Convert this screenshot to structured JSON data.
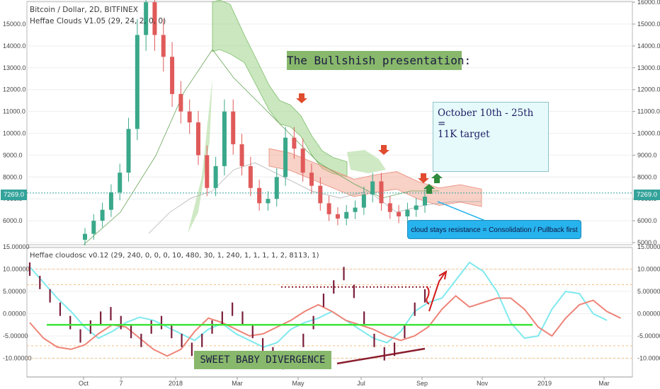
{
  "header": {
    "symbol_line": "Bitcoin / Dollar, 2D, BITFINEX",
    "indicator_line": "Heffae Clouds V1.05 (29, 24, 2, 0, 0)",
    "osc_line": "Heffae cloudosc v0.12 (29, 240, 0, 0, 0, 10, 480, 30, 1, 240, 1, 1, 1, 1, 2, 8113, 1)"
  },
  "annotations": {
    "bullish_title": "The Bullshish presentation:",
    "target_line1": "October 10th - 25th =",
    "target_line2": "11K target",
    "cloud_callout": "cloud stays resistance = Consolidation / Pullback first",
    "divergence_label": "SWEET BABY DIVERGENCE"
  },
  "price_tags": {
    "left": "7269.0",
    "right": "7269.0"
  },
  "colors": {
    "bull_candle": "#3aa88a",
    "bear_candle": "#e05a5a",
    "osc_bar": "#7a1e3a",
    "cloud_green": "#9fd38a",
    "cloud_red": "#f2a38f",
    "osc_cyan": "#7fe9ee",
    "osc_red": "#ee8478",
    "zero_line": "#3ee43a",
    "div_line": "#8a1d2e",
    "price_line": "#33a39b"
  },
  "chart_data": [
    {
      "type": "candlestick",
      "title": "Bitcoin / Dollar, 2D, BITFINEX",
      "ylabel": "",
      "y_ticks": [
        "5000.0",
        "6000.0",
        "7000.0",
        "8000.0",
        "9000.0",
        "10000.0",
        "11000.0",
        "12000.0",
        "13000.0",
        "14000.0",
        "15000.0",
        "16000.0"
      ],
      "ylim": [
        5000,
        16000
      ],
      "x_ticks": [
        "Oct",
        "7",
        "2018",
        "Mar",
        "May",
        "Jul",
        "Sep",
        "Nov",
        "2019",
        "Mar"
      ],
      "last_price": 7269.0,
      "close_series_approx": [
        5400,
        6000,
        6500,
        7300,
        8200,
        10200,
        14500,
        16000,
        14500,
        13500,
        11800,
        11000,
        10500,
        9000,
        7500,
        8500,
        11000,
        9500,
        8500,
        7500,
        6800,
        7000,
        8000,
        9800,
        9300,
        8200,
        7600,
        6800,
        6300,
        6100,
        6400,
        6600,
        7200,
        7800,
        6800,
        6400,
        6200,
        6500,
        6700,
        7100
      ],
      "cloud_green_approx": [
        16000,
        16100,
        15900,
        14500,
        13200,
        12200,
        11500,
        11300,
        10800,
        9900,
        9200,
        8900,
        8700
      ],
      "cloud_red_approx": [
        9800,
        9600,
        9200,
        8600,
        7900,
        7900,
        8000,
        7300,
        7100,
        7300
      ]
    },
    {
      "type": "line",
      "title": "Heffae cloudosc v0.12 (29, 240, 0, 0, 0, 10, 480, 30, 1, 240, 1, 1, 1, 1, 2, 8113, 1)",
      "y_ticks": [
        "15.00000",
        "10.00000",
        "5.00000",
        "0.00000",
        "-5.00000",
        "-10.00000"
      ],
      "ylim": [
        -14,
        15.5
      ],
      "horizontal_level": -2.5,
      "dotted_resistance": 6,
      "series": [
        {
          "values": [
            10.5,
            7,
            3.5,
            0.5,
            -3,
            -5.5,
            -4,
            -2,
            -0.8,
            -1.5,
            -3,
            -4.5,
            -6,
            -3.5,
            -2.2,
            -4.5,
            -6,
            -7.5,
            -6.5,
            -3.5,
            -2,
            -1,
            0.5,
            -1.5,
            -3.5,
            -5.5,
            -6.5,
            -4,
            0.5,
            2.5,
            3.5,
            7.5,
            11.5,
            9.5,
            5,
            -2,
            -5.5,
            -5,
            1,
            5,
            4.5,
            0,
            -1.5
          ]
        },
        {
          "values": [
            -2,
            -5.5,
            -7.5,
            -8,
            -7,
            -4.5,
            -2.5,
            -3,
            -5.5,
            -8,
            -9.5,
            -8,
            -4,
            -1,
            -2,
            -3.5,
            -5,
            -4.5,
            -3,
            -1.5,
            0.5,
            2,
            0.5,
            -1.5,
            -2.5,
            -3.5,
            -5,
            -6,
            -5,
            -3,
            1,
            4,
            1.5,
            2.5,
            3.5,
            3.5,
            1,
            -3,
            -5,
            -1,
            2,
            3,
            0.5,
            -1
          ]
        }
      ]
    }
  ]
}
